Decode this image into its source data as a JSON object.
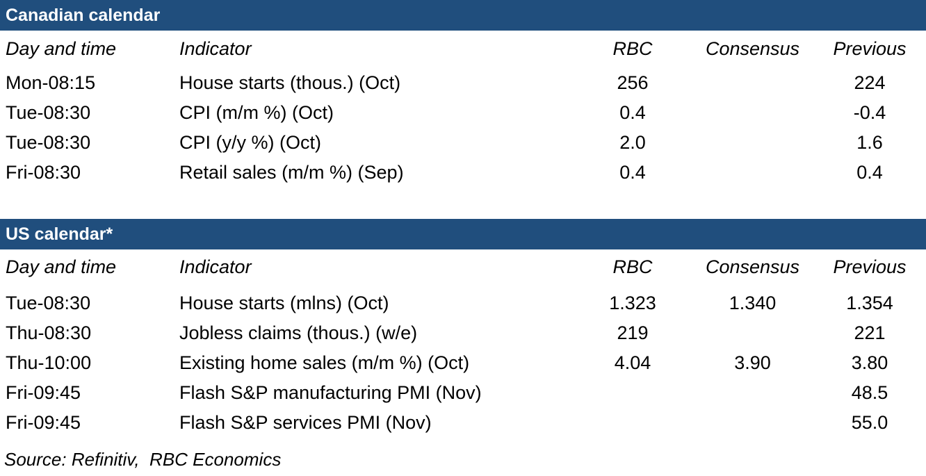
{
  "colors": {
    "title_bar_bg": "#204E7D",
    "title_bar_text": "#FFFFFF",
    "body_text": "#000000"
  },
  "columns": {
    "day_time": "Day and time",
    "indicator": "Indicator",
    "rbc": "RBC",
    "consensus": "Consensus",
    "previous": "Previous"
  },
  "tables": [
    {
      "title": "Canadian calendar",
      "rows": [
        {
          "day": "Mon-08:15",
          "indicator": "House starts (thous.) (Oct)",
          "rbc": "256",
          "consensus": "",
          "previous": "224"
        },
        {
          "day": "Tue-08:30",
          "indicator": "CPI (m/m %) (Oct)",
          "rbc": "0.4",
          "consensus": "",
          "previous": "-0.4"
        },
        {
          "day": "Tue-08:30",
          "indicator": "CPI (y/y %) (Oct)",
          "rbc": "2.0",
          "consensus": "",
          "previous": "1.6"
        },
        {
          "day": "Fri-08:30",
          "indicator": "Retail sales (m/m %) (Sep)",
          "rbc": "0.4",
          "consensus": "",
          "previous": "0.4"
        }
      ]
    },
    {
      "title": "US calendar*",
      "rows": [
        {
          "day": "Tue-08:30",
          "indicator": "House starts (mlns) (Oct)",
          "rbc": "1.323",
          "consensus": "1.340",
          "previous": "1.354"
        },
        {
          "day": "Thu-08:30",
          "indicator": "Jobless claims (thous.) (w/e)",
          "rbc": "219",
          "consensus": "",
          "previous": "221"
        },
        {
          "day": "Thu-10:00",
          "indicator": "Existing home sales (m/m %) (Oct)",
          "rbc": "4.04",
          "consensus": "3.90",
          "previous": "3.80"
        },
        {
          "day": "Fri-09:45",
          "indicator": "Flash S&P manufacturing PMI (Nov)",
          "rbc": "",
          "consensus": "",
          "previous": "48.5"
        },
        {
          "day": "Fri-09:45",
          "indicator": "Flash S&P services PMI (Nov)",
          "rbc": "",
          "consensus": "",
          "previous": "55.0"
        }
      ]
    }
  ],
  "footer": {
    "source": "Source: Refinitiv,  RBC Economics"
  }
}
